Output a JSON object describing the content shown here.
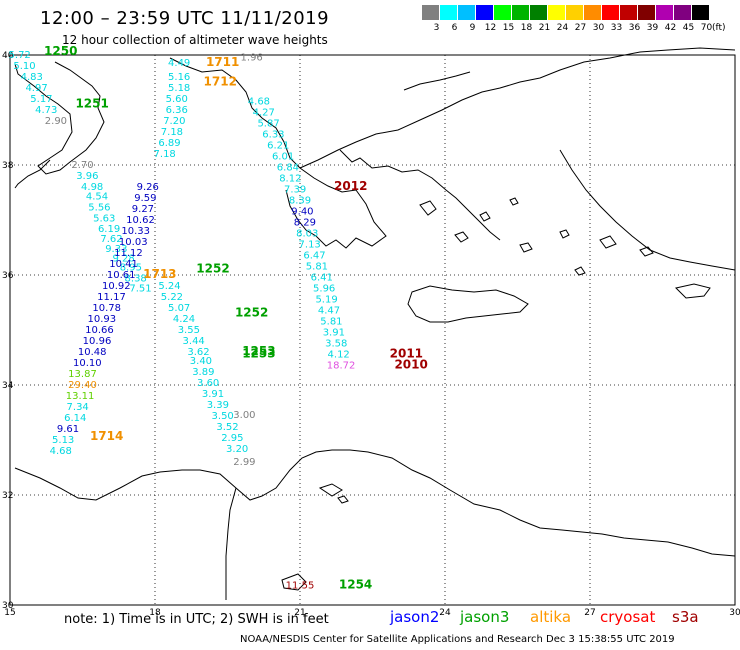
{
  "header": {
    "title": "12:00 – 23:59 UTC 11/11/2019",
    "subtitle": "12 hour collection of altimeter wave heights"
  },
  "scale": {
    "colors": [
      "#808080",
      "#00ffff",
      "#00bfff",
      "#0000ff",
      "#00ff00",
      "#00b400",
      "#008000",
      "#ffff00",
      "#ffd000",
      "#ff8c00",
      "#ff0000",
      "#c00000",
      "#800000",
      "#b000b0",
      "#800080",
      "#000000"
    ],
    "labels": [
      "3",
      "6",
      "9",
      "12",
      "15",
      "18",
      "21",
      "24",
      "27",
      "30",
      "33",
      "36",
      "39",
      "42",
      "45",
      "70"
    ],
    "unit": "(ft)"
  },
  "axes": {
    "lon_ticks": [
      "15",
      "18",
      "21",
      "24",
      "27",
      "30"
    ],
    "lat_ticks": [
      "40",
      "38",
      "36",
      "34",
      "32",
      "30"
    ],
    "lon_range": [
      15,
      30
    ],
    "lat_range": [
      30,
      40
    ]
  },
  "colors": {
    "cyan": "#00d8e0",
    "navy": "#0000c0",
    "green": "#00a000",
    "orange": "#f09000",
    "darkred": "#a00000",
    "grey": "#808080",
    "magenta": "#e050e0",
    "lime": "#60d000"
  },
  "tracks": [
    {
      "pts": [
        [
          "5.72",
          15.2,
          39.95,
          "cyan"
        ],
        [
          "5.10",
          15.3,
          39.75,
          "cyan"
        ],
        [
          "4.83",
          15.45,
          39.55,
          "cyan"
        ],
        [
          "4.97",
          15.55,
          39.35,
          "cyan"
        ],
        [
          "5.17",
          15.65,
          39.15,
          "cyan"
        ],
        [
          "4.73",
          15.75,
          38.95,
          "cyan"
        ],
        [
          "2.90",
          15.95,
          38.75,
          "grey"
        ],
        [
          "2.70",
          16.5,
          37.95,
          "grey"
        ],
        [
          "3.96",
          16.6,
          37.75,
          "cyan"
        ],
        [
          "4.98",
          16.7,
          37.55,
          "cyan"
        ],
        [
          "4.54",
          16.8,
          37.37,
          "cyan"
        ],
        [
          "5.56",
          16.85,
          37.17,
          "cyan"
        ],
        [
          "5.63",
          16.95,
          36.97,
          "cyan"
        ],
        [
          "6.19",
          17.05,
          36.78,
          "cyan"
        ],
        [
          "7.62",
          17.1,
          36.6,
          "cyan"
        ],
        [
          "9.33",
          17.2,
          36.42,
          "cyan"
        ],
        [
          "9.28",
          17.35,
          36.25,
          "cyan"
        ],
        [
          "8.95",
          17.5,
          36.08,
          "cyan"
        ],
        [
          "8.38",
          17.6,
          35.88,
          "cyan"
        ],
        [
          "7.51",
          17.7,
          35.7,
          "cyan"
        ]
      ]
    },
    {
      "pts": [
        [
          "9.26",
          17.85,
          37.55,
          "navy"
        ],
        [
          "9.59",
          17.8,
          37.35,
          "navy"
        ],
        [
          "9.27",
          17.75,
          37.15,
          "navy"
        ],
        [
          "10.62",
          17.7,
          36.95,
          "navy"
        ],
        [
          "10.33",
          17.6,
          36.75,
          "navy"
        ],
        [
          "10.03",
          17.55,
          36.55,
          "navy"
        ],
        [
          "11.12",
          17.45,
          36.35,
          "navy"
        ],
        [
          "10.41",
          17.35,
          36.15,
          "navy"
        ],
        [
          "10.61",
          17.3,
          35.95,
          "navy"
        ],
        [
          "10.92",
          17.2,
          35.75,
          "navy"
        ],
        [
          "11.17",
          17.1,
          35.55,
          "navy"
        ],
        [
          "10.78",
          17.0,
          35.35,
          "navy"
        ],
        [
          "10.93",
          16.9,
          35.15,
          "navy"
        ],
        [
          "10.66",
          16.85,
          34.95,
          "navy"
        ],
        [
          "10.96",
          16.8,
          34.75,
          "navy"
        ],
        [
          "10.48",
          16.7,
          34.55,
          "navy"
        ],
        [
          "10.10",
          16.6,
          34.35,
          "navy"
        ],
        [
          "13.87",
          16.5,
          34.15,
          "lime"
        ],
        [
          "29.40",
          16.5,
          33.95,
          "orange"
        ],
        [
          "13.11",
          16.45,
          33.75,
          "lime"
        ],
        [
          "7.34",
          16.4,
          33.55,
          "cyan"
        ],
        [
          "6.14",
          16.35,
          33.35,
          "cyan"
        ],
        [
          "9.61",
          16.2,
          33.15,
          "navy"
        ],
        [
          "5.13",
          16.1,
          32.95,
          "cyan"
        ],
        [
          "4.68",
          16.05,
          32.75,
          "cyan"
        ]
      ]
    },
    {
      "pts": [
        [
          "4.49",
          18.5,
          39.8,
          "cyan"
        ],
        [
          "5.16",
          18.5,
          39.55,
          "cyan"
        ],
        [
          "5.18",
          18.5,
          39.35,
          "cyan"
        ],
        [
          "5.60",
          18.45,
          39.15,
          "cyan"
        ],
        [
          "6.36",
          18.45,
          38.95,
          "cyan"
        ],
        [
          "7.20",
          18.4,
          38.75,
          "cyan"
        ],
        [
          "7.18",
          18.35,
          38.55,
          "cyan"
        ],
        [
          "6.89",
          18.3,
          38.35,
          "cyan"
        ],
        [
          "7.18",
          18.2,
          38.15,
          "cyan"
        ],
        [
          "5.24",
          18.3,
          35.75,
          "cyan"
        ],
        [
          "5.22",
          18.35,
          35.55,
          "cyan"
        ],
        [
          "5.07",
          18.5,
          35.35,
          "cyan"
        ],
        [
          "4.24",
          18.6,
          35.15,
          "cyan"
        ],
        [
          "3.55",
          18.7,
          34.95,
          "cyan"
        ],
        [
          "3.44",
          18.8,
          34.75,
          "cyan"
        ],
        [
          "3.62",
          18.9,
          34.55,
          "cyan"
        ],
        [
          "3.40",
          18.95,
          34.38,
          "cyan"
        ],
        [
          "3.89",
          19.0,
          34.18,
          "cyan"
        ],
        [
          "3.60",
          19.1,
          33.98,
          "cyan"
        ],
        [
          "3.91",
          19.2,
          33.78,
          "cyan"
        ],
        [
          "3.39",
          19.3,
          33.58,
          "cyan"
        ],
        [
          "3.50",
          19.4,
          33.38,
          "cyan"
        ],
        [
          "3.52",
          19.5,
          33.18,
          "cyan"
        ],
        [
          "2.95",
          19.6,
          32.98,
          "cyan"
        ],
        [
          "3.20",
          19.7,
          32.78,
          "cyan"
        ]
      ]
    },
    {
      "pts": [
        [
          "1.96",
          20.0,
          39.9,
          "grey"
        ],
        [
          "4.68",
          20.15,
          39.1,
          "cyan"
        ],
        [
          "4.27",
          20.25,
          38.9,
          "cyan"
        ],
        [
          "5.87",
          20.35,
          38.7,
          "cyan"
        ],
        [
          "6.33",
          20.45,
          38.5,
          "cyan"
        ],
        [
          "6.21",
          20.55,
          38.3,
          "cyan"
        ],
        [
          "6.01",
          20.65,
          38.1,
          "cyan"
        ],
        [
          "6.84",
          20.75,
          37.9,
          "cyan"
        ],
        [
          "8.12",
          20.8,
          37.7,
          "cyan"
        ],
        [
          "7.39",
          20.9,
          37.5,
          "cyan"
        ],
        [
          "8.39",
          21.0,
          37.3,
          "cyan"
        ],
        [
          "9.40",
          21.05,
          37.1,
          "navy"
        ],
        [
          "8.29",
          21.1,
          36.9,
          "navy"
        ],
        [
          "8.03",
          21.15,
          36.7,
          "cyan"
        ],
        [
          "7.13",
          21.2,
          36.5,
          "cyan"
        ],
        [
          "6.47",
          21.3,
          36.3,
          "cyan"
        ],
        [
          "5.81",
          21.35,
          36.1,
          "cyan"
        ],
        [
          "6.41",
          21.45,
          35.9,
          "cyan"
        ],
        [
          "5.96",
          21.5,
          35.7,
          "cyan"
        ],
        [
          "5.19",
          21.55,
          35.5,
          "cyan"
        ],
        [
          "4.47",
          21.6,
          35.3,
          "cyan"
        ],
        [
          "5.81",
          21.65,
          35.1,
          "cyan"
        ],
        [
          "3.91",
          21.7,
          34.9,
          "cyan"
        ],
        [
          "3.58",
          21.75,
          34.7,
          "cyan"
        ],
        [
          "4.12",
          21.8,
          34.5,
          "cyan"
        ],
        [
          "18.72",
          21.85,
          34.3,
          "magenta"
        ],
        [
          "3.00",
          19.85,
          33.4,
          "grey"
        ],
        [
          "2.99",
          19.85,
          32.55,
          "grey"
        ],
        [
          "11.55",
          21.0,
          30.3,
          "darkred"
        ]
      ]
    }
  ],
  "time_marks": [
    [
      "1250",
      16.05,
      40.0,
      "green"
    ],
    [
      "1251",
      16.7,
      39.05,
      "green"
    ],
    [
      "1711",
      19.4,
      39.8,
      "orange"
    ],
    [
      "1712",
      19.35,
      39.45,
      "orange"
    ],
    [
      "2012",
      22.05,
      37.55,
      "darkred"
    ],
    [
      "1252",
      19.2,
      36.05,
      "green"
    ],
    [
      "1713",
      18.1,
      35.95,
      "orange"
    ],
    [
      "1252",
      20.0,
      35.25,
      "green"
    ],
    [
      "1253",
      20.15,
      34.55,
      "green"
    ],
    [
      "1253",
      20.15,
      34.5,
      "green"
    ],
    [
      "2011",
      23.2,
      34.5,
      "darkred"
    ],
    [
      "2010",
      23.3,
      34.3,
      "darkred"
    ],
    [
      "1714",
      17.0,
      33.0,
      "orange"
    ],
    [
      "1254",
      22.15,
      30.3,
      "green"
    ]
  ],
  "footer": {
    "note": "note:  1) Time is in UTC;  2) SWH is in feet",
    "legend": [
      {
        "name": "jason2",
        "color": "#0000ff"
      },
      {
        "name": "jason3",
        "color": "#00a000"
      },
      {
        "name": "altika",
        "color": "#ff9900"
      },
      {
        "name": "cryosat",
        "color": "#ff0000"
      },
      {
        "name": "s3a",
        "color": "#a00000"
      }
    ],
    "credit": "NOAA/NESDIS Center for Satellite Applications and Research   Dec  3 15:38:55 UTC 2019"
  }
}
